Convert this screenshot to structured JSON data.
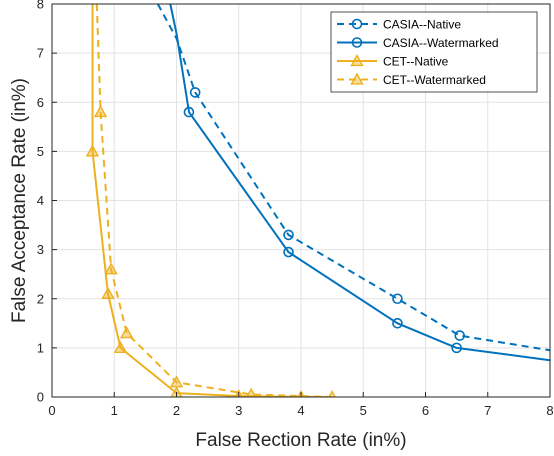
{
  "chart_data": {
    "type": "line",
    "xlabel": "False Rection Rate (in%)",
    "ylabel": "False Acceptance Rate (in%)",
    "xlim": [
      0,
      8
    ],
    "ylim": [
      0,
      8
    ],
    "xticks": [
      0,
      1,
      2,
      3,
      4,
      5,
      6,
      7,
      8
    ],
    "yticks": [
      0,
      1,
      2,
      3,
      4,
      5,
      6,
      7,
      8
    ],
    "grid": true,
    "legend_position": "top-right",
    "series": [
      {
        "name": "CASIA--Native",
        "color": "#0072BD",
        "line_style": "dashed",
        "marker": "circle",
        "x": [
          1.7,
          2.0,
          2.3,
          3.8,
          5.55,
          6.55,
          8.0
        ],
        "y": [
          8.0,
          7.3,
          6.2,
          3.3,
          2.0,
          1.25,
          0.95
        ],
        "marker_x": [
          2.3,
          3.8,
          5.55,
          6.55
        ],
        "marker_y": [
          6.2,
          3.3,
          2.0,
          1.25
        ]
      },
      {
        "name": "CASIA--Watermarked",
        "color": "#0072BD",
        "line_style": "solid",
        "marker": "circle",
        "x": [
          1.9,
          2.0,
          2.2,
          3.8,
          5.55,
          6.5,
          8.0
        ],
        "y": [
          8.0,
          7.4,
          5.8,
          2.95,
          1.5,
          1.0,
          0.75
        ],
        "marker_x": [
          2.2,
          3.8,
          5.55,
          6.5
        ],
        "marker_y": [
          5.8,
          2.95,
          1.5,
          1.0
        ]
      },
      {
        "name": "CET--Native",
        "color": "#EDB120",
        "line_style": "solid",
        "marker": "triangle",
        "x": [
          0.65,
          0.65,
          0.9,
          1.1,
          2.0,
          3.0,
          4.0,
          4.5
        ],
        "y": [
          8.0,
          5.0,
          2.1,
          1.0,
          0.08,
          0.02,
          0.0,
          0.0
        ],
        "marker_x": [
          0.65,
          0.9,
          1.1,
          2.0,
          3.0,
          4.0
        ],
        "marker_y": [
          5.0,
          2.1,
          1.0,
          0.08,
          0.02,
          0.0
        ]
      },
      {
        "name": "CET--Watermarked",
        "color": "#EDB120",
        "line_style": "dashed",
        "marker": "triangle",
        "x": [
          0.72,
          0.78,
          0.95,
          1.2,
          2.0,
          3.2,
          4.5
        ],
        "y": [
          8.0,
          5.8,
          2.6,
          1.3,
          0.3,
          0.05,
          0.0
        ],
        "marker_x": [
          0.78,
          0.95,
          1.2,
          2.0,
          3.2,
          4.5
        ],
        "marker_y": [
          5.8,
          2.6,
          1.3,
          0.3,
          0.05,
          0.0
        ]
      }
    ]
  }
}
